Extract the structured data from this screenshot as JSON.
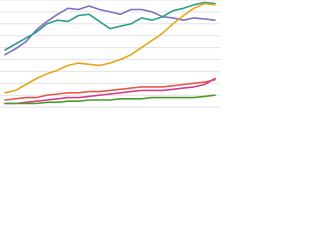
{
  "chart_data": {
    "type": "line",
    "ylim": [
      0,
      10
    ],
    "yticks": [
      1,
      2,
      3,
      4,
      5,
      6,
      7,
      8,
      9,
      10
    ],
    "grid": true,
    "series": [
      {
        "color": "#7a6fc4",
        "values": [
          5.4,
          5.9,
          6.5,
          7.5,
          8.2,
          8.8,
          9.3,
          9.2,
          9.5,
          9.2,
          9.0,
          8.8,
          9.2,
          9.2,
          9.0,
          8.6,
          8.5,
          8.3,
          8.5,
          8.4,
          8.3
        ]
      },
      {
        "color": "#2a9d8f",
        "values": [
          5.8,
          6.3,
          6.8,
          7.3,
          8.0,
          8.3,
          8.2,
          8.7,
          8.8,
          8.2,
          7.6,
          7.8,
          8.0,
          8.5,
          8.3,
          8.6,
          9.1,
          9.3,
          9.6,
          9.8,
          9.7
        ]
      },
      {
        "color": "#e8a317",
        "values": [
          2.2,
          2.4,
          2.9,
          3.4,
          3.8,
          4.1,
          4.5,
          4.7,
          4.6,
          4.5,
          4.7,
          5.0,
          5.4,
          6.0,
          6.6,
          7.2,
          8.0,
          8.7,
          9.3,
          9.7,
          9.6
        ]
      },
      {
        "color": "#e05a4f",
        "values": [
          1.6,
          1.7,
          1.8,
          1.8,
          2.0,
          2.1,
          2.2,
          2.2,
          2.3,
          2.3,
          2.4,
          2.5,
          2.6,
          2.7,
          2.7,
          2.7,
          2.8,
          2.9,
          3.0,
          3.1,
          3.3
        ]
      },
      {
        "color": "#d63c8a",
        "values": [
          1.3,
          1.3,
          1.4,
          1.5,
          1.6,
          1.7,
          1.8,
          1.8,
          1.9,
          2.0,
          2.1,
          2.2,
          2.3,
          2.4,
          2.4,
          2.4,
          2.5,
          2.6,
          2.7,
          2.9,
          3.4
        ]
      },
      {
        "color": "#4c9a2a",
        "values": [
          1.3,
          1.3,
          1.3,
          1.3,
          1.4,
          1.4,
          1.5,
          1.5,
          1.6,
          1.6,
          1.6,
          1.7,
          1.7,
          1.7,
          1.8,
          1.8,
          1.8,
          1.8,
          1.8,
          1.9,
          2.0
        ]
      }
    ]
  }
}
